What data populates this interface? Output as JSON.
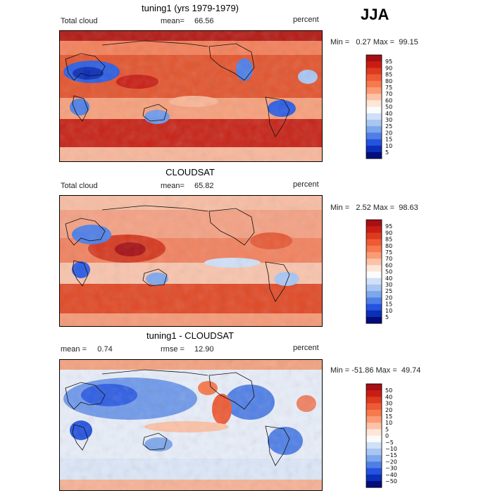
{
  "season": "JJA",
  "panels": [
    {
      "title": "tuning1 (yrs 1979-1979)",
      "left_label": "Total cloud",
      "mid_label": "mean=",
      "mid_value": "66.56",
      "right_label": "percent",
      "stats": "Min =   0.27 Max =  99.15"
    },
    {
      "title": "CLOUDSAT",
      "left_label": "Total cloud",
      "mid_label": "mean=",
      "mid_value": "65.82",
      "right_label": "percent",
      "stats": "Min =   2.52 Max =  98.63"
    },
    {
      "title": "tuning1 - CLOUDSAT",
      "left_label": "mean =     0.74",
      "mid_label": "rmse =",
      "mid_value": "12.90",
      "right_label": "percent",
      "stats": "Min = -51.86 Max =  49.74"
    }
  ],
  "chart_data": [
    {
      "type": "heatmap",
      "title": "tuning1 (yrs 1979-1979)",
      "variable": "Total cloud",
      "units": "percent",
      "mean": 66.56,
      "min": 0.27,
      "max": 99.15,
      "colorbar": {
        "levels": [
          95,
          90,
          85,
          80,
          75,
          70,
          60,
          50,
          40,
          30,
          25,
          20,
          15,
          10,
          5
        ],
        "colors": [
          "#a50f15",
          "#c91d14",
          "#dd3a1f",
          "#ee5a35",
          "#f7794d",
          "#fb9b75",
          "#fcc2a7",
          "#fde6d8",
          "#fbfbfb",
          "#cfe0f7",
          "#a9c6f3",
          "#7da7ec",
          "#4f7fe6",
          "#2353df",
          "#0c2fb8",
          "#050d7d"
        ]
      }
    },
    {
      "type": "heatmap",
      "title": "CLOUDSAT",
      "variable": "Total cloud",
      "units": "percent",
      "mean": 65.82,
      "min": 2.52,
      "max": 98.63,
      "colorbar": {
        "levels": [
          95,
          90,
          85,
          80,
          75,
          70,
          60,
          50,
          40,
          30,
          25,
          20,
          15,
          10,
          5
        ],
        "colors": [
          "#a50f15",
          "#c91d14",
          "#dd3a1f",
          "#ee5a35",
          "#f7794d",
          "#fb9b75",
          "#fcc2a7",
          "#fde6d8",
          "#fbfbfb",
          "#cfe0f7",
          "#a9c6f3",
          "#7da7ec",
          "#4f7fe6",
          "#2353df",
          "#0c2fb8",
          "#050d7d"
        ]
      }
    },
    {
      "type": "heatmap",
      "title": "tuning1 - CLOUDSAT",
      "units": "percent",
      "mean": 0.74,
      "rmse": 12.9,
      "min": -51.86,
      "max": 49.74,
      "colorbar": {
        "levels": [
          50,
          40,
          30,
          20,
          15,
          10,
          5,
          0,
          -5,
          -10,
          -15,
          -20,
          -30,
          -40,
          -50
        ],
        "colors": [
          "#a50f15",
          "#c91d14",
          "#dd3a1f",
          "#ee5a35",
          "#f7794d",
          "#fb9b75",
          "#fcc2a7",
          "#fde6d8",
          "#fbfbfb",
          "#cfe0f7",
          "#a9c6f3",
          "#7da7ec",
          "#4f7fe6",
          "#2353df",
          "#0c2fb8",
          "#050d7d"
        ]
      }
    }
  ]
}
